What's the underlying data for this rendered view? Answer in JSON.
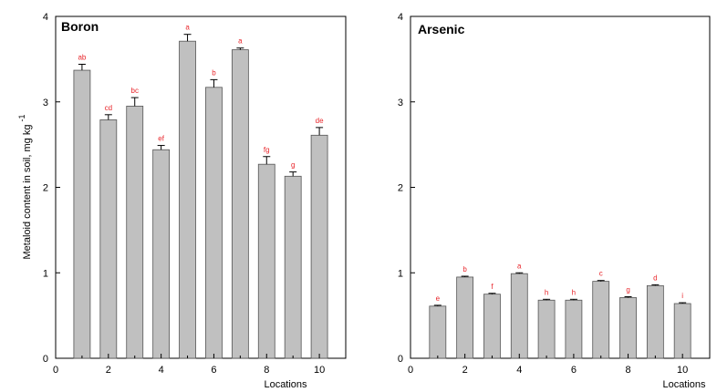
{
  "chart_data": [
    {
      "type": "bar",
      "title": "Boron",
      "xlabel": "Locations",
      "ylabel": "Metaloid content in soil, mg kg",
      "ylabel_superscript": "-1",
      "x": [
        1,
        2,
        3,
        4,
        5,
        6,
        7,
        8,
        9,
        10
      ],
      "values": [
        3.37,
        2.79,
        2.95,
        2.44,
        3.71,
        3.17,
        3.61,
        2.27,
        2.13,
        2.61
      ],
      "errors": [
        0.07,
        0.06,
        0.1,
        0.05,
        0.08,
        0.09,
        0.02,
        0.09,
        0.05,
        0.09
      ],
      "sig_labels": [
        "ab",
        "cd",
        "bc",
        "ef",
        "a",
        "b",
        "a",
        "fg",
        "g",
        "de"
      ],
      "xlim": [
        0,
        11
      ],
      "ylim": [
        0,
        4
      ],
      "xticks": [
        0,
        2,
        4,
        6,
        8,
        10
      ],
      "yticks": [
        0,
        1,
        2,
        3,
        4
      ],
      "grid": false,
      "bar_color": "#c0c0c0",
      "label_color": "#e8252a"
    },
    {
      "type": "bar",
      "title": "Arsenic",
      "xlabel": "Locations",
      "ylabel": "",
      "x": [
        1,
        2,
        3,
        4,
        5,
        6,
        7,
        8,
        9,
        10
      ],
      "values": [
        0.61,
        0.95,
        0.75,
        0.99,
        0.68,
        0.68,
        0.9,
        0.71,
        0.85,
        0.64
      ],
      "errors": [
        0.01,
        0.01,
        0.01,
        0.01,
        0.01,
        0.01,
        0.01,
        0.01,
        0.01,
        0.01
      ],
      "sig_labels": [
        "e",
        "b",
        "f",
        "a",
        "h",
        "h",
        "c",
        "g",
        "d",
        "i"
      ],
      "xlim": [
        0,
        11
      ],
      "ylim": [
        0,
        4
      ],
      "xticks": [
        0,
        2,
        4,
        6,
        8,
        10
      ],
      "yticks": [
        0,
        1,
        2,
        3,
        4
      ],
      "grid": false,
      "bar_color": "#c0c0c0",
      "label_color": "#e8252a"
    }
  ]
}
